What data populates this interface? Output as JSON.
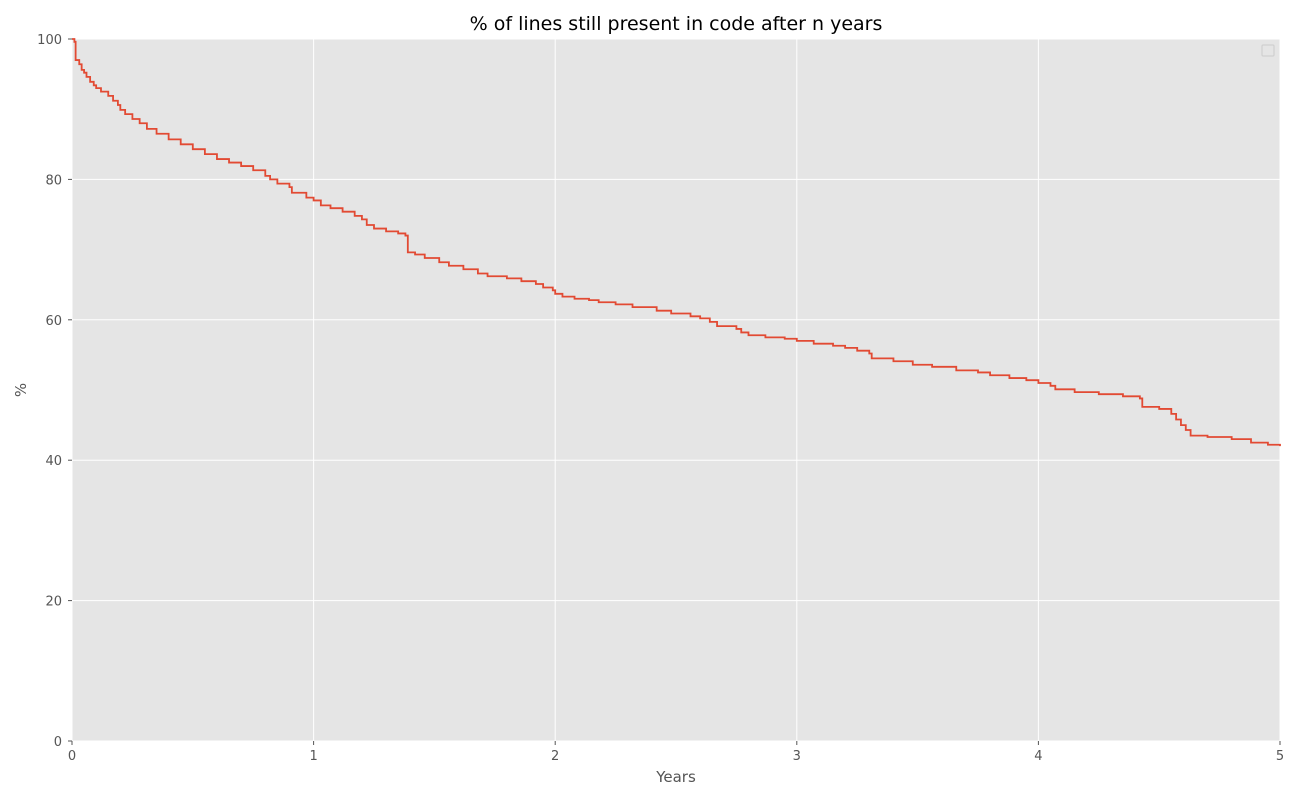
{
  "chart_data": {
    "type": "line",
    "title": "% of lines still present in code after n years",
    "xlabel": "Years",
    "ylabel": "%",
    "xlim": [
      0,
      5
    ],
    "ylim": [
      0,
      100
    ],
    "xticks": [
      0,
      1,
      2,
      3,
      4,
      5
    ],
    "yticks": [
      0,
      20,
      40,
      60,
      80,
      100
    ],
    "x_tick_labels": [
      "0",
      "1",
      "2",
      "3",
      "4",
      "5"
    ],
    "y_tick_labels": [
      "0",
      "20",
      "40",
      "60",
      "80",
      "100"
    ],
    "grid": true,
    "legend": "top-right",
    "style": "step",
    "colors": {
      "plot_bg": "#e5e5e5",
      "grid": "#ffffff",
      "line": "#e24a33"
    },
    "series": [
      {
        "values": [
          [
            0.0,
            100.0
          ],
          [
            0.01,
            99.6
          ],
          [
            0.015,
            97.0
          ],
          [
            0.03,
            96.4
          ],
          [
            0.04,
            95.6
          ],
          [
            0.05,
            95.2
          ],
          [
            0.06,
            94.6
          ],
          [
            0.075,
            93.9
          ],
          [
            0.09,
            93.4
          ],
          [
            0.1,
            93.0
          ],
          [
            0.12,
            92.5
          ],
          [
            0.15,
            91.9
          ],
          [
            0.17,
            91.2
          ],
          [
            0.19,
            90.6
          ],
          [
            0.2,
            89.9
          ],
          [
            0.22,
            89.3
          ],
          [
            0.25,
            88.6
          ],
          [
            0.28,
            88.0
          ],
          [
            0.31,
            87.2
          ],
          [
            0.35,
            86.5
          ],
          [
            0.4,
            85.7
          ],
          [
            0.45,
            85.0
          ],
          [
            0.5,
            84.3
          ],
          [
            0.55,
            83.6
          ],
          [
            0.6,
            82.9
          ],
          [
            0.65,
            82.4
          ],
          [
            0.7,
            81.9
          ],
          [
            0.75,
            81.3
          ],
          [
            0.8,
            80.5
          ],
          [
            0.82,
            80.0
          ],
          [
            0.85,
            79.4
          ],
          [
            0.9,
            78.9
          ],
          [
            0.91,
            78.1
          ],
          [
            0.97,
            77.4
          ],
          [
            1.0,
            77.0
          ],
          [
            1.03,
            76.3
          ],
          [
            1.07,
            75.9
          ],
          [
            1.12,
            75.4
          ],
          [
            1.17,
            74.8
          ],
          [
            1.2,
            74.3
          ],
          [
            1.22,
            73.5
          ],
          [
            1.25,
            73.0
          ],
          [
            1.3,
            72.6
          ],
          [
            1.35,
            72.3
          ],
          [
            1.38,
            72.0
          ],
          [
            1.39,
            69.6
          ],
          [
            1.42,
            69.3
          ],
          [
            1.46,
            68.8
          ],
          [
            1.52,
            68.2
          ],
          [
            1.56,
            67.7
          ],
          [
            1.62,
            67.2
          ],
          [
            1.68,
            66.6
          ],
          [
            1.72,
            66.2
          ],
          [
            1.8,
            65.9
          ],
          [
            1.86,
            65.5
          ],
          [
            1.92,
            65.1
          ],
          [
            1.95,
            64.6
          ],
          [
            1.99,
            64.2
          ],
          [
            2.0,
            63.7
          ],
          [
            2.03,
            63.3
          ],
          [
            2.08,
            63.0
          ],
          [
            2.14,
            62.8
          ],
          [
            2.18,
            62.5
          ],
          [
            2.25,
            62.2
          ],
          [
            2.32,
            61.8
          ],
          [
            2.42,
            61.3
          ],
          [
            2.48,
            60.9
          ],
          [
            2.56,
            60.5
          ],
          [
            2.6,
            60.2
          ],
          [
            2.64,
            59.7
          ],
          [
            2.67,
            59.1
          ],
          [
            2.75,
            58.7
          ],
          [
            2.77,
            58.2
          ],
          [
            2.8,
            57.8
          ],
          [
            2.87,
            57.5
          ],
          [
            2.95,
            57.3
          ],
          [
            3.0,
            57.0
          ],
          [
            3.07,
            56.6
          ],
          [
            3.15,
            56.3
          ],
          [
            3.2,
            56.0
          ],
          [
            3.25,
            55.6
          ],
          [
            3.3,
            55.2
          ],
          [
            3.31,
            54.5
          ],
          [
            3.4,
            54.1
          ],
          [
            3.48,
            53.6
          ],
          [
            3.56,
            53.3
          ],
          [
            3.66,
            52.8
          ],
          [
            3.75,
            52.5
          ],
          [
            3.8,
            52.1
          ],
          [
            3.88,
            51.7
          ],
          [
            3.95,
            51.4
          ],
          [
            4.0,
            51.0
          ],
          [
            4.05,
            50.6
          ],
          [
            4.07,
            50.1
          ],
          [
            4.15,
            49.7
          ],
          [
            4.25,
            49.4
          ],
          [
            4.35,
            49.1
          ],
          [
            4.42,
            48.8
          ],
          [
            4.43,
            47.6
          ],
          [
            4.5,
            47.3
          ],
          [
            4.55,
            46.6
          ],
          [
            4.57,
            45.8
          ],
          [
            4.59,
            45.0
          ],
          [
            4.61,
            44.3
          ],
          [
            4.63,
            43.5
          ],
          [
            4.7,
            43.3
          ],
          [
            4.8,
            43.0
          ],
          [
            4.88,
            42.5
          ],
          [
            4.95,
            42.2
          ],
          [
            5.0,
            42.0
          ]
        ]
      }
    ]
  }
}
